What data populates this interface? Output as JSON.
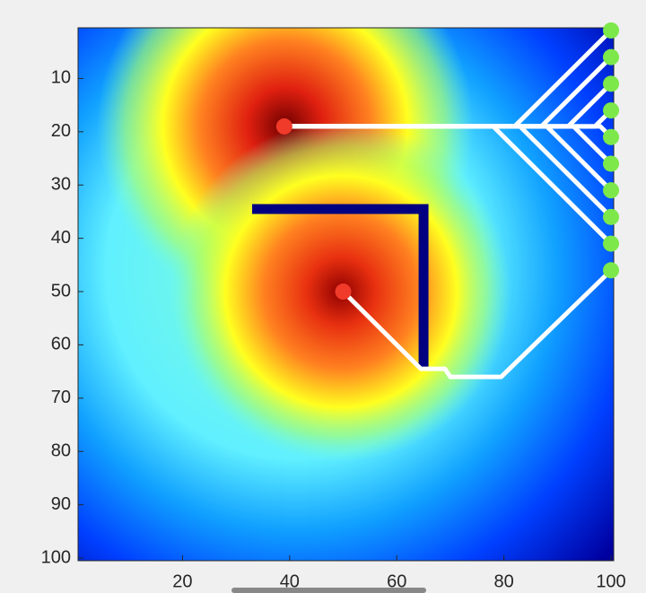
{
  "chart_data": {
    "type": "field-paths",
    "xlim": [
      0.5,
      100.5
    ],
    "ylim": [
      0.5,
      100.5
    ],
    "y_reversed": true,
    "xticks": [
      20,
      40,
      60,
      80,
      100
    ],
    "yticks": [
      10,
      20,
      30,
      40,
      50,
      60,
      70,
      80,
      90,
      100
    ],
    "path_color": "#ffffff",
    "wall_color": "#000080",
    "source_color": "#f03a2a",
    "target_color": "#7ce84a",
    "wall": {
      "x": [
        33,
        65,
        65
      ],
      "y": [
        34.5,
        34.5,
        64.5
      ]
    },
    "sources": {
      "x": [
        39,
        50
      ],
      "y": [
        19,
        50
      ]
    },
    "targets": {
      "x": [
        100,
        100,
        100,
        100,
        100,
        100,
        100,
        100,
        100,
        100
      ],
      "y": [
        1,
        6,
        11,
        16,
        21,
        26,
        31,
        36,
        41,
        46
      ]
    },
    "paths": [
      {
        "x": [
          39,
          82,
          100
        ],
        "y": [
          19,
          19,
          1
        ]
      },
      {
        "x": [
          39,
          87,
          100
        ],
        "y": [
          19,
          19,
          6
        ]
      },
      {
        "x": [
          39,
          92,
          100
        ],
        "y": [
          19,
          19,
          11
        ]
      },
      {
        "x": [
          39,
          97,
          100
        ],
        "y": [
          19,
          19,
          16
        ]
      },
      {
        "x": [
          39,
          98,
          100
        ],
        "y": [
          19,
          19,
          21
        ]
      },
      {
        "x": [
          39,
          93,
          100
        ],
        "y": [
          19,
          19,
          26
        ]
      },
      {
        "x": [
          39,
          88,
          100
        ],
        "y": [
          19,
          19,
          31
        ]
      },
      {
        "x": [
          39,
          83,
          100
        ],
        "y": [
          19,
          19,
          36
        ]
      },
      {
        "x": [
          39,
          78,
          100
        ],
        "y": [
          19,
          19,
          41
        ]
      },
      {
        "x": [
          50,
          64.5,
          69,
          70,
          79.5,
          100
        ],
        "y": [
          50,
          64.5,
          64.5,
          66,
          66,
          46
        ]
      }
    ]
  }
}
